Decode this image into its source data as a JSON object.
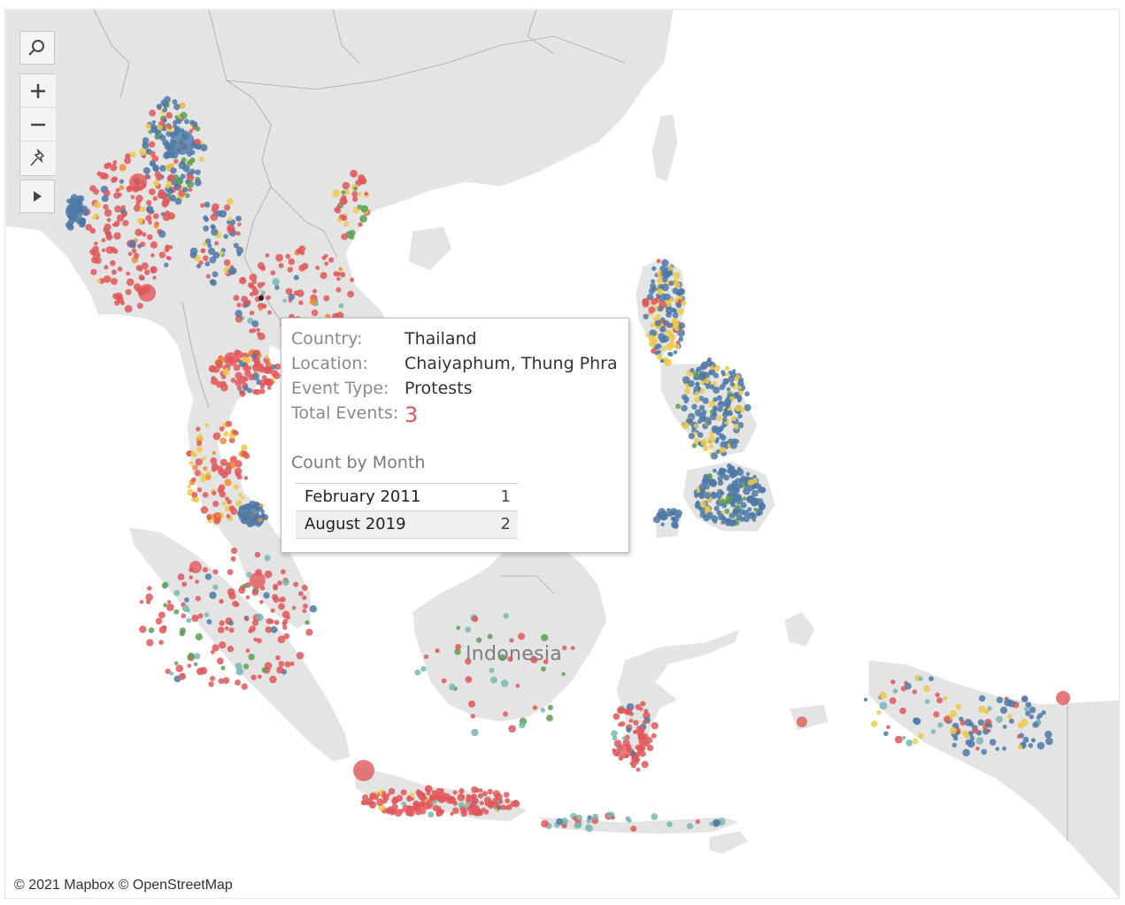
{
  "map": {
    "region_label": "Indonesia",
    "attribution": "© 2021 Mapbox © OpenStreetMap",
    "colors": {
      "land": "#e4e4e4",
      "water": "#ffffff",
      "border": "#a6a6a6",
      "red": "#e15759",
      "blue": "#4e79a7",
      "yellow": "#edc948",
      "teal": "#76b7b2",
      "green": "#59a14f",
      "orange": "#f28e2b"
    }
  },
  "toolbar": {
    "search_icon": "search-icon",
    "zoom_in_icon": "plus-icon",
    "zoom_out_icon": "minus-icon",
    "pin_icon": "pin-icon",
    "play_icon": "play-icon"
  },
  "tooltip": {
    "rows": [
      {
        "key": "Country:",
        "value": "Thailand"
      },
      {
        "key": "Location:",
        "value": "Chaiyaphum, Thung Phra"
      },
      {
        "key": "Event Type:",
        "value": "Protests"
      },
      {
        "key": "Total Events:",
        "value": "3"
      }
    ],
    "subtitle": "Count by Month",
    "months": [
      {
        "month": "February 2011",
        "count": "1"
      },
      {
        "month": "August 2019",
        "count": "2"
      }
    ]
  }
}
